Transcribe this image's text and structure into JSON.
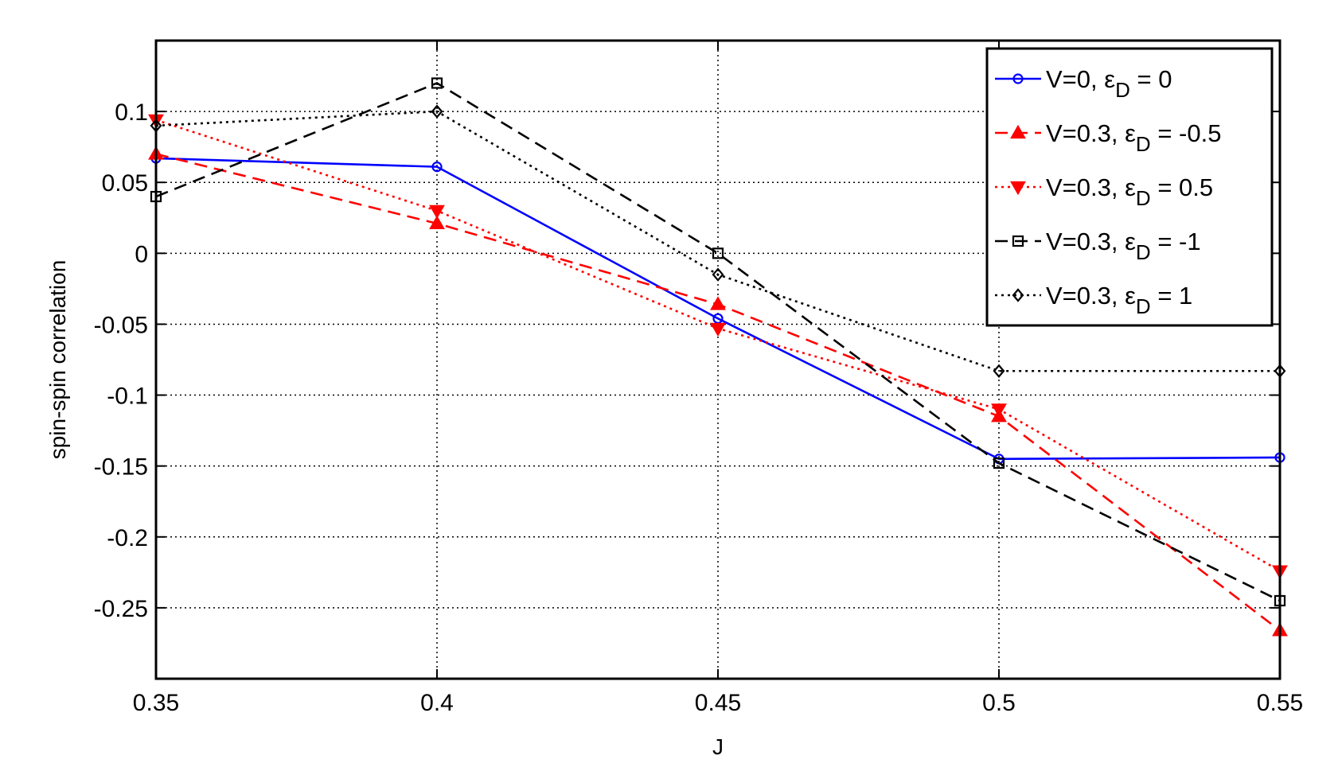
{
  "chart_data": {
    "type": "line",
    "title": "",
    "xlabel": "J",
    "ylabel": "spin-spin correlation",
    "xlim": [
      0.35,
      0.55
    ],
    "ylim": [
      -0.3,
      0.15
    ],
    "grid": true,
    "legend_position": "top-right",
    "x": [
      0.35,
      0.4,
      0.45,
      0.5,
      0.55
    ],
    "x_ticks": [
      "0.35",
      "0.4",
      "0.45",
      "0.5",
      "0.55"
    ],
    "y_ticks": [
      {
        "value": 0.1,
        "label": "0.1"
      },
      {
        "value": 0.05,
        "label": "0.05"
      },
      {
        "value": 0,
        "label": "0"
      },
      {
        "value": -0.05,
        "label": "-0.05"
      },
      {
        "value": -0.1,
        "label": "-0.1"
      },
      {
        "value": -0.15,
        "label": "-0.15"
      },
      {
        "value": -0.2,
        "label": "-0.2"
      },
      {
        "value": -0.25,
        "label": "-0.25"
      }
    ],
    "series": [
      {
        "name": "V=0, εD = 0",
        "legend_prefix": "V=0, ε",
        "legend_sub": "D",
        "legend_suffix": " = 0",
        "values": [
          0.067,
          0.061,
          -0.046,
          -0.145,
          -0.144
        ],
        "color": "#0000ff",
        "dash": "solid",
        "marker": "circle"
      },
      {
        "name": "V=0.3, εD = -0.5",
        "legend_prefix": "V=0.3, ε",
        "legend_sub": "D",
        "legend_suffix": " = -0.5",
        "values": [
          0.07,
          0.021,
          -0.036,
          -0.115,
          -0.266
        ],
        "color": "#ff0000",
        "dash": "dashed",
        "marker": "triangle-up"
      },
      {
        "name": "V=0.3, εD = 0.5",
        "legend_prefix": "V=0.3, ε",
        "legend_sub": "D",
        "legend_suffix": " = 0.5",
        "values": [
          0.094,
          0.03,
          -0.053,
          -0.11,
          -0.224
        ],
        "color": "#ff0000",
        "dash": "dotted",
        "marker": "triangle-down"
      },
      {
        "name": "V=0.3, εD = -1",
        "legend_prefix": "V=0.3, ε",
        "legend_sub": "D",
        "legend_suffix": " = -1",
        "values": [
          0.04,
          0.12,
          0.0,
          -0.148,
          -0.245
        ],
        "color": "#000000",
        "dash": "dashed",
        "marker": "square"
      },
      {
        "name": "V=0.3, εD = 1",
        "legend_prefix": "V=0.3, ε",
        "legend_sub": "D",
        "legend_suffix": " = 1",
        "values": [
          0.09,
          0.1,
          -0.015,
          -0.083,
          -0.083
        ],
        "color": "#000000",
        "dash": "dotted",
        "marker": "diamond"
      }
    ]
  }
}
